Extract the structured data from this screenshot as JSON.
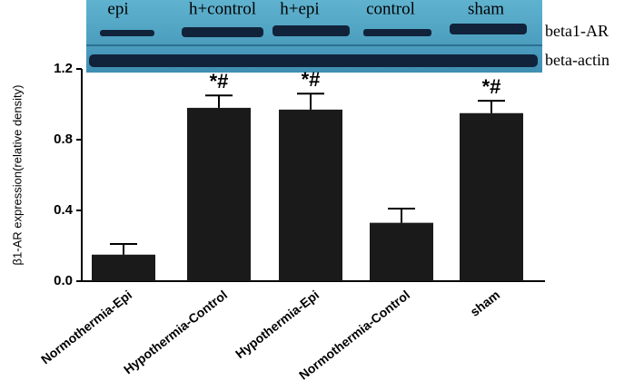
{
  "blot": {
    "lanes": [
      "epi",
      "h+control",
      "h+epi",
      "control",
      "sham"
    ],
    "rows": [
      "beta1-AR",
      "beta-actin"
    ]
  },
  "chart_data": {
    "type": "bar",
    "y_label": "β1-AR expression(relative density)",
    "categories": [
      "Normothermia-Epi",
      "Hypothermia-Control",
      "Hypothermia-Epi",
      "Normothermia-Control",
      "sham"
    ],
    "values": [
      0.15,
      0.98,
      0.97,
      0.33,
      0.95
    ],
    "errors": [
      0.06,
      0.07,
      0.09,
      0.08,
      0.07
    ],
    "annotations": [
      null,
      "*#",
      "*#",
      null,
      "*#"
    ],
    "color": "#1a1a1a",
    "ylim": [
      0,
      1.2
    ],
    "yticks": [
      {
        "value": 0,
        "label": "0.0"
      },
      0.4,
      0.8,
      1.2
    ]
  }
}
